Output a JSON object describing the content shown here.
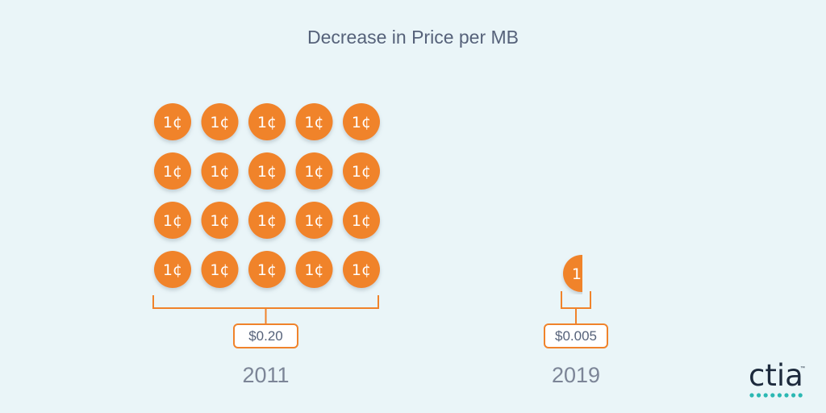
{
  "chart_data": {
    "type": "pictograph",
    "title": "Decrease in Price per MB",
    "unit_icon_label": "1¢",
    "unit_value_cents": 1,
    "categories": [
      "2011",
      "2019"
    ],
    "values": [
      0.2,
      0.005
    ],
    "value_labels": [
      "$0.20",
      "$0.005"
    ],
    "icon_counts": [
      20,
      0.5
    ]
  },
  "logo": {
    "text": "ctia",
    "tm": "™"
  },
  "colors": {
    "background": "#eaf5f8",
    "coin": "#f0832b",
    "bracket": "#f0832b",
    "title": "#56627a",
    "year": "#7c8597",
    "logo_dots": "#2bb8b3"
  }
}
